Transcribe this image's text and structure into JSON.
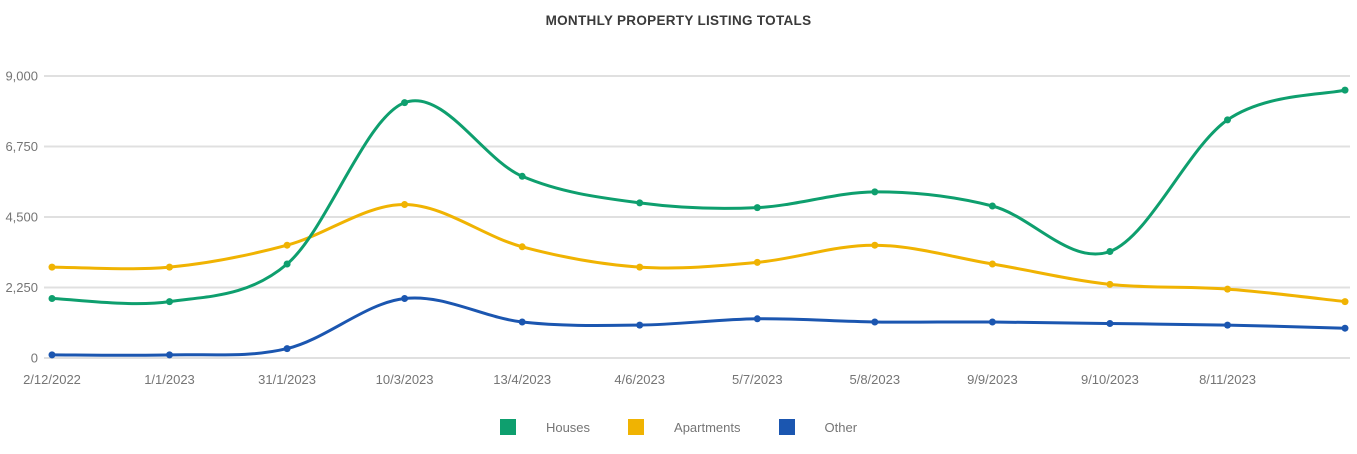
{
  "chart_data": {
    "type": "line",
    "title": "MONTHLY PROPERTY LISTING TOTALS",
    "smooth": true,
    "grid": true,
    "legend_position": "bottom",
    "x_labels": [
      "2/12/2022",
      "1/1/2023",
      "31/1/2023",
      "10/3/2023",
      "13/4/2023",
      "4/6/2023",
      "5/7/2023",
      "5/8/2023",
      "9/9/2023",
      "9/10/2023",
      "8/11/2023",
      ""
    ],
    "y_axis": {
      "tick_labels": [
        "0",
        "2,250",
        "4,500",
        "6,750",
        "9,000"
      ],
      "tick_values": [
        0,
        2250,
        4500,
        6750,
        9000
      ],
      "range": [
        0,
        9000
      ]
    },
    "series": [
      {
        "name": "Houses",
        "color": "#0E9F6E",
        "values": [
          1900,
          1800,
          3000,
          8150,
          5800,
          4950,
          4800,
          5300,
          4850,
          3400,
          7600,
          8550
        ]
      },
      {
        "name": "Apartments",
        "color": "#F0B302",
        "values": [
          2900,
          2900,
          3600,
          4900,
          3550,
          2900,
          3050,
          3600,
          3000,
          2350,
          2200,
          1800
        ]
      },
      {
        "name": "Other",
        "color": "#1B56B0",
        "values": [
          100,
          100,
          300,
          1900,
          1150,
          1050,
          1250,
          1150,
          1150,
          1100,
          1050,
          950
        ]
      }
    ]
  },
  "colors": {
    "grid": "#e0e0e0",
    "tick_text": "#757575",
    "title_text": "#3a3a3a",
    "background": "#ffffff"
  }
}
